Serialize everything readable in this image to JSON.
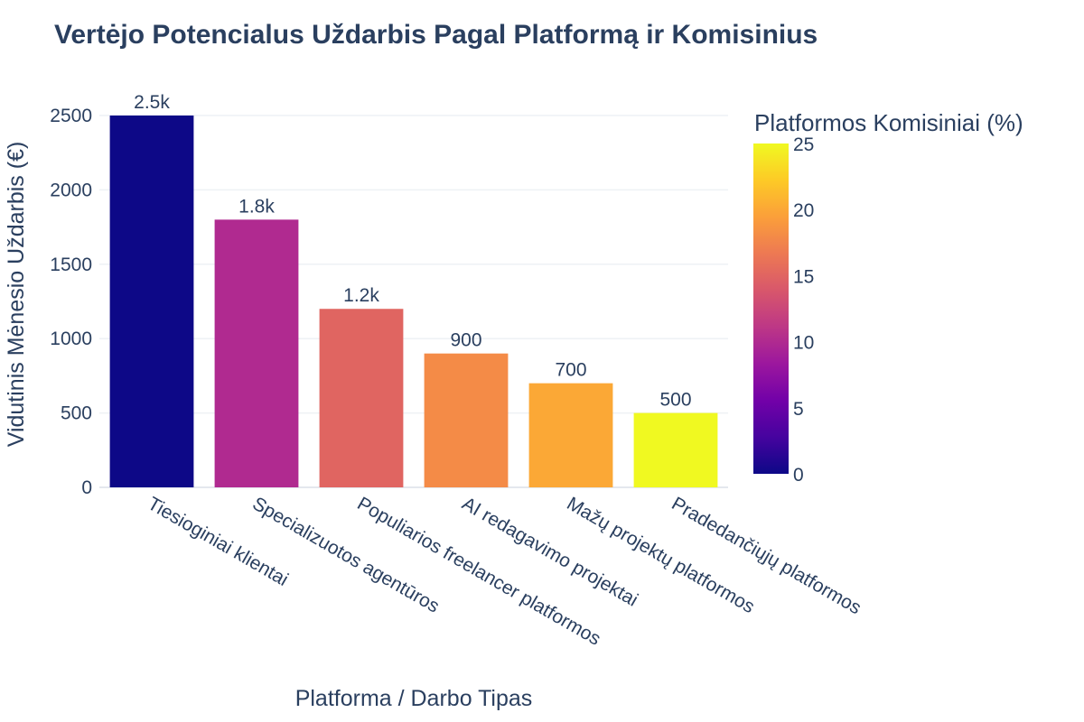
{
  "chart_data": {
    "type": "bar",
    "title": "Vertėjo Potencialus Uždarbis Pagal Platformą ir Komisinius",
    "xlabel": "Platforma / Darbo Tipas",
    "ylabel": "Vidutinis Mėnesio Uždarbis (€)",
    "categories": [
      "Tiesioginiai klientai",
      "Specializuotos agentūros",
      "Populiarios freelancer platformos",
      "AI redagavimo projektai",
      "Mažų projektų platformos",
      "Pradedančiųjų platformos"
    ],
    "values": [
      2500,
      1800,
      1200,
      900,
      700,
      500
    ],
    "value_labels": [
      "2.5k",
      "1.8k",
      "1.2k",
      "900",
      "700",
      "500"
    ],
    "commission_percent": [
      0,
      10,
      15,
      18,
      20,
      25
    ],
    "ylim": [
      0,
      2500
    ],
    "yticks": [
      "0",
      "500",
      "1000",
      "1500",
      "2000",
      "2500"
    ],
    "ytick_values": [
      0,
      500,
      1000,
      1500,
      2000,
      2500
    ],
    "grid": true,
    "colorbar": {
      "title": "Platformos Komisiniai (%)",
      "range": [
        0,
        25
      ],
      "tick_values": [
        0,
        5,
        10,
        15,
        20,
        25
      ],
      "ticks": [
        "0",
        "5",
        "10",
        "15",
        "20",
        "25"
      ],
      "colorscale": [
        "#0d0887",
        "#46039f",
        "#7201a8",
        "#9c179e",
        "#bd3786",
        "#d8576b",
        "#ed7953",
        "#fb9f3a",
        "#fdca26",
        "#f0f921"
      ],
      "placement": "right"
    }
  }
}
